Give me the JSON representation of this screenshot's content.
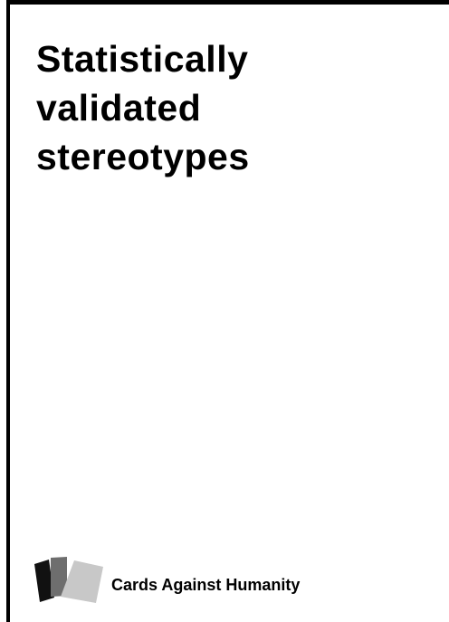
{
  "card": {
    "text": "Statistically\nvalidated\nstereotypes"
  },
  "footer": {
    "brand": "Cards Against Humanity",
    "logo_icon": "stacked-cards-icon"
  },
  "colors": {
    "background": "#ffffff",
    "text": "#000000",
    "logo_black": "#111111",
    "logo_dark_gray": "#6e6e6e",
    "logo_light_gray": "#c8c8c8"
  }
}
